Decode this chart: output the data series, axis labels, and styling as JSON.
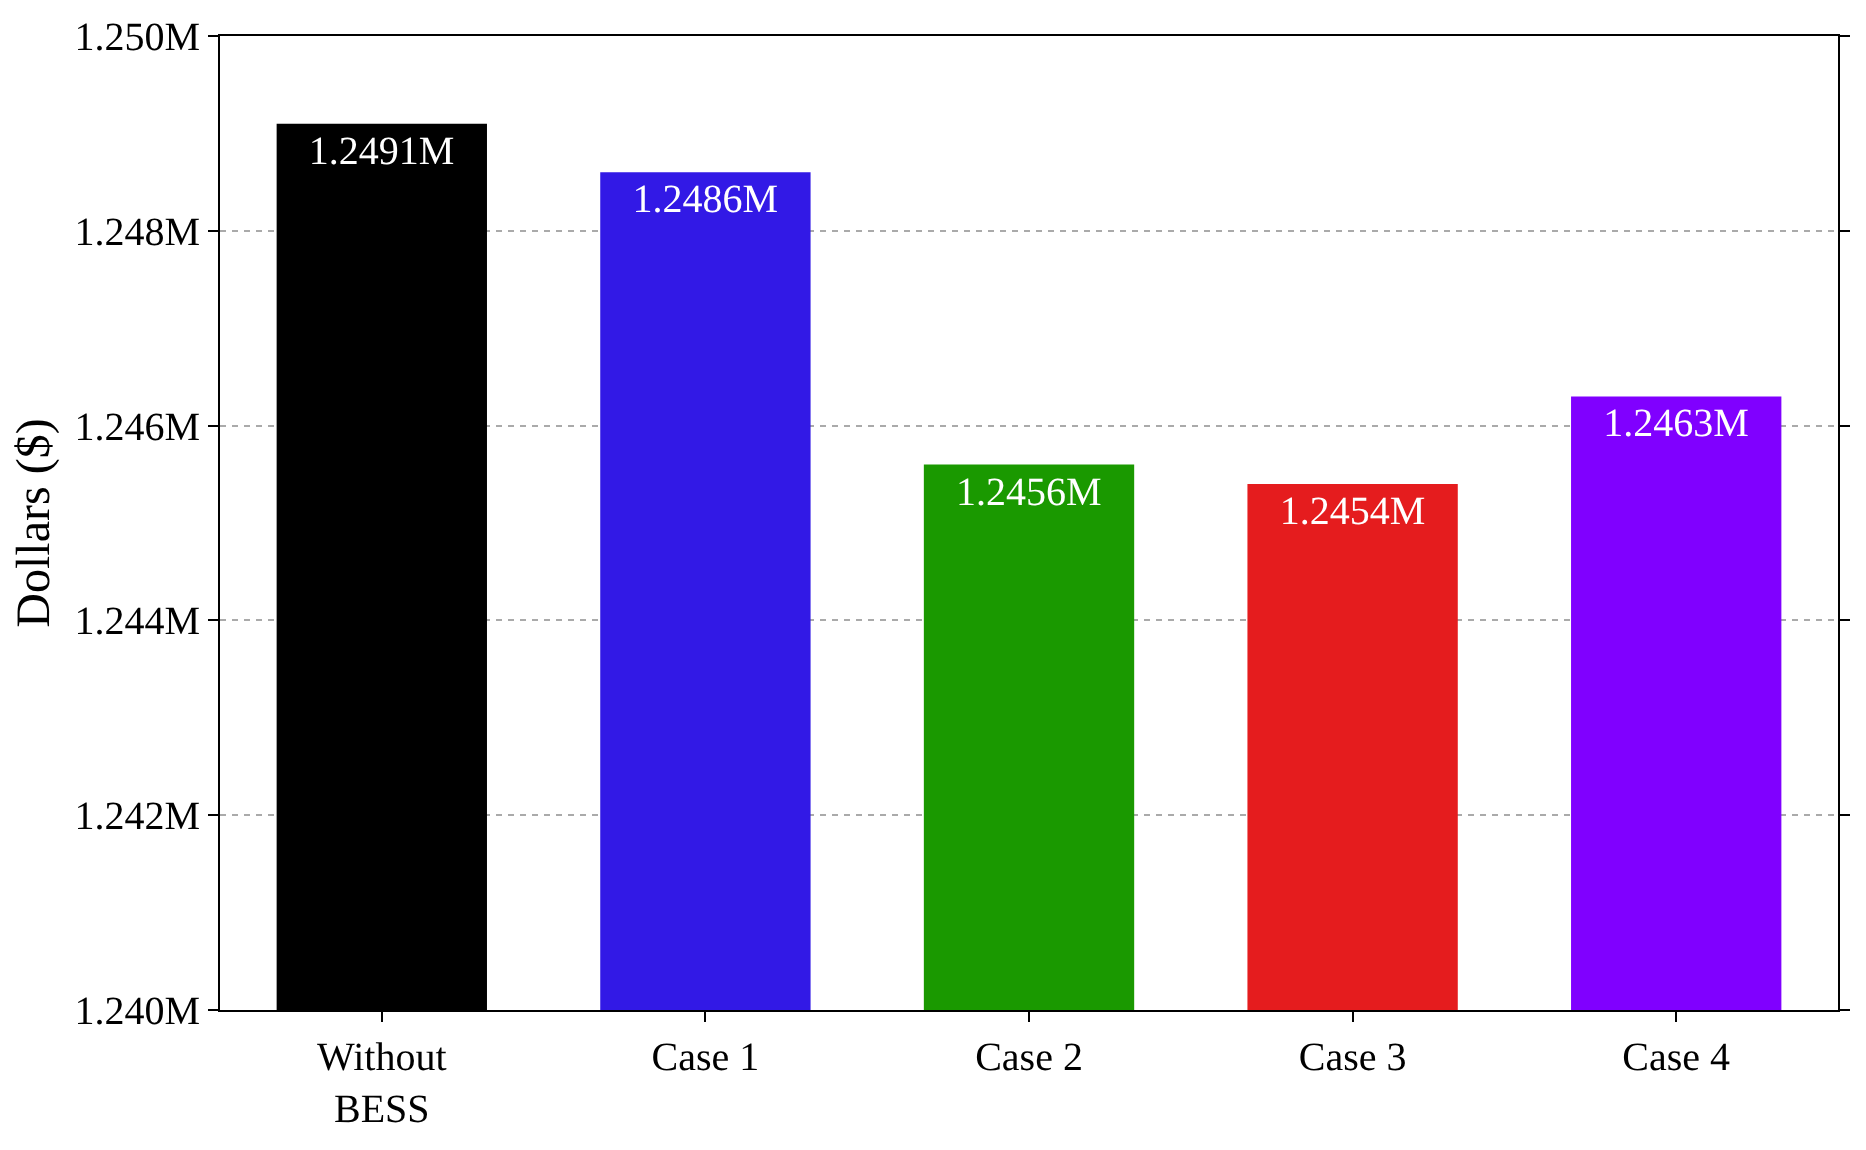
{
  "chart_data": {
    "type": "bar",
    "ylabel": "Dollars ($)",
    "categories": [
      "Without BESS",
      "Case 1",
      "Case 2",
      "Case 3",
      "Case 4"
    ],
    "values": [
      1249100,
      1248600,
      1245600,
      1245400,
      1246300
    ],
    "value_labels": [
      "1.2491M",
      "1.2486M",
      "1.2456M",
      "1.2454M",
      "1.2463M"
    ],
    "colors": [
      "#000000",
      "#3219e6",
      "#1a9900",
      "#e51c1e",
      "#8000ff"
    ],
    "ylim": [
      1240000,
      1250000
    ],
    "yticks": [
      {
        "value": 1240000,
        "label": "1.240M"
      },
      {
        "value": 1242000,
        "label": "1.242M"
      },
      {
        "value": 1244000,
        "label": "1.244M"
      },
      {
        "value": 1246000,
        "label": "1.246M"
      },
      {
        "value": 1248000,
        "label": "1.248M"
      },
      {
        "value": 1250000,
        "label": "1.250M"
      }
    ],
    "grid": "y"
  }
}
